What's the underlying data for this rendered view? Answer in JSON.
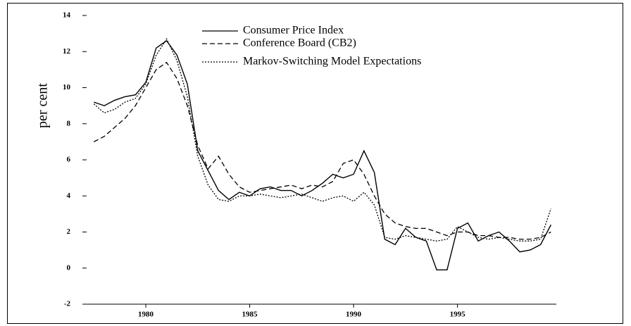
{
  "chart_data": {
    "type": "line",
    "ylabel": "per cent",
    "x": [
      1977.5,
      1978,
      1978.5,
      1979,
      1979.5,
      1980,
      1980.5,
      1981,
      1981.5,
      1982,
      1982.5,
      1983,
      1983.5,
      1984,
      1984.5,
      1985,
      1985.5,
      1986,
      1986.5,
      1987,
      1987.5,
      1988,
      1988.5,
      1989,
      1989.5,
      1990,
      1990.5,
      1991,
      1991.5,
      1992,
      1992.5,
      1993,
      1993.5,
      1994,
      1994.5,
      1995,
      1995.5,
      1996,
      1996.5,
      1997,
      1997.5,
      1998,
      1998.5,
      1999,
      1999.5
    ],
    "series": [
      {
        "name": "Consumer Price Index",
        "color": "#000000",
        "dash": "solid",
        "values": [
          9.2,
          9.0,
          9.3,
          9.5,
          9.6,
          10.3,
          12.2,
          12.6,
          11.8,
          10.2,
          6.5,
          5.4,
          4.3,
          3.8,
          4.2,
          4.0,
          4.4,
          4.5,
          4.3,
          4.3,
          4.0,
          4.3,
          4.7,
          5.2,
          5.0,
          5.2,
          6.5,
          5.3,
          1.6,
          1.3,
          2.2,
          1.7,
          1.5,
          -0.1,
          -0.1,
          2.2,
          2.5,
          1.5,
          1.8,
          2.0,
          1.5,
          0.9,
          1.0,
          1.3,
          2.4
        ]
      },
      {
        "name": "Conference Board (CB2)",
        "color": "#000000",
        "dash": "dashed",
        "values": [
          7.0,
          7.3,
          7.8,
          8.3,
          9.0,
          10.0,
          11.0,
          11.4,
          10.5,
          9.0,
          6.8,
          5.5,
          6.2,
          5.2,
          4.5,
          4.2,
          4.3,
          4.4,
          4.5,
          4.6,
          4.4,
          4.6,
          4.5,
          4.8,
          5.8,
          6.0,
          5.2,
          4.0,
          3.0,
          2.5,
          2.3,
          2.2,
          2.2,
          2.0,
          1.8,
          2.0,
          2.0,
          1.8,
          1.8,
          1.7,
          1.7,
          1.6,
          1.6,
          1.7,
          2.0
        ]
      },
      {
        "name": "Markov-Switching Model Expectations",
        "color": "#000000",
        "dash": "dotted",
        "values": [
          9.1,
          8.6,
          8.8,
          9.2,
          9.4,
          10.2,
          11.8,
          12.7,
          11.5,
          9.5,
          6.2,
          4.6,
          3.8,
          3.7,
          4.0,
          4.0,
          4.1,
          4.0,
          3.9,
          4.0,
          4.1,
          3.9,
          3.7,
          3.9,
          4.0,
          3.7,
          4.2,
          3.5,
          1.7,
          1.6,
          1.8,
          1.7,
          1.6,
          1.5,
          1.6,
          2.3,
          2.0,
          1.7,
          1.6,
          1.7,
          1.6,
          1.5,
          1.5,
          1.6,
          3.3
        ]
      }
    ],
    "xlim": [
      1977.05,
      1999.76
    ],
    "xticks": [
      1980,
      1985,
      1990,
      1995
    ],
    "ylim": [
      -2,
      14
    ],
    "yticks": [
      -2,
      0,
      2,
      4,
      6,
      8,
      10,
      12,
      14
    ],
    "legend": "top"
  }
}
